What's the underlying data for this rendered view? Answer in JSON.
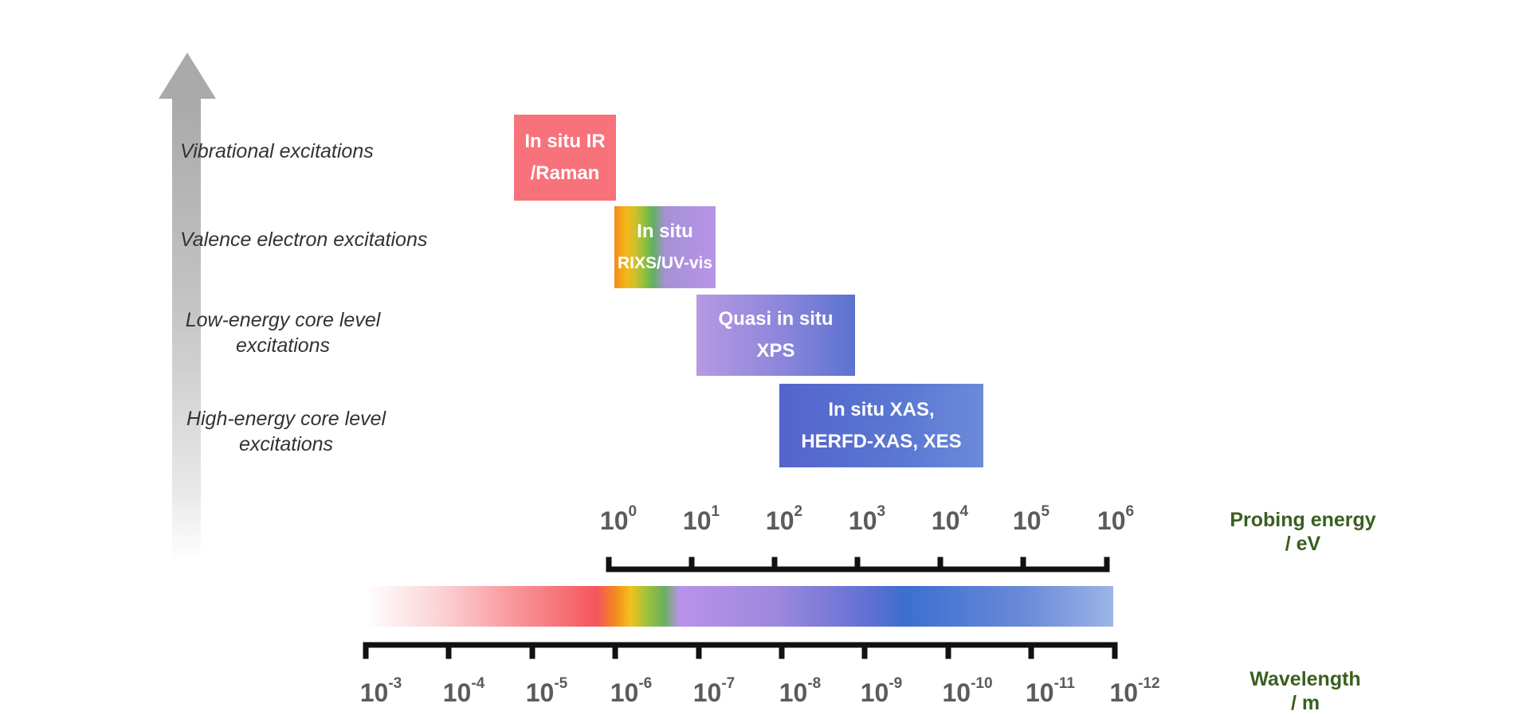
{
  "categories": [
    {
      "text": "Vibrational excitations"
    },
    {
      "text": "Valence electron excitations"
    },
    {
      "line1": "Low-energy core level",
      "line2": "excitations"
    },
    {
      "line1": "High-energy core level",
      "line2": "excitations"
    }
  ],
  "techniques": [
    {
      "line1": "In situ IR",
      "line2": "/Raman"
    },
    {
      "line1": "In situ",
      "line2": "RIXS/UV-vis"
    },
    {
      "line1": "Quasi in situ",
      "line2": "XPS"
    },
    {
      "line1": "In situ XAS,",
      "line2": "HERFD-XAS, XES"
    }
  ],
  "energy_axis": {
    "title_line1": "Probing energy",
    "title_line2": "/ eV",
    "base": "10",
    "exponents": [
      "0",
      "1",
      "2",
      "3",
      "4",
      "5",
      "6"
    ]
  },
  "wavelength_axis": {
    "title_line1": "Wavelength",
    "title_line2": "/ m",
    "base": "10",
    "exponents": [
      "-3",
      "-4",
      "-5",
      "-6",
      "-7",
      "-8",
      "-9",
      "-10",
      "-11",
      "-12"
    ]
  },
  "colors": {
    "axis_title": "#3a5f1f",
    "tick_label": "#5b5b5b",
    "red": "#f7727a",
    "purple": "#b893e8",
    "blue": "#3b6fd0"
  }
}
